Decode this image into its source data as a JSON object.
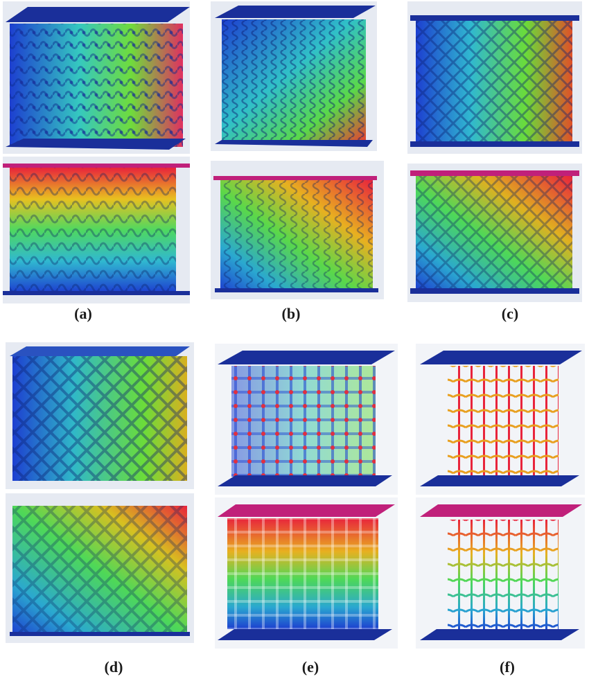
{
  "figure": {
    "panels": [
      {
        "label": "(a)",
        "id": "a",
        "top_mode": "stress",
        "bottom_mode": "displacement",
        "lattice": "bcc-curved"
      },
      {
        "label": "(b)",
        "id": "b",
        "top_mode": "stress",
        "bottom_mode": "displacement",
        "lattice": "woven"
      },
      {
        "label": "(c)",
        "id": "c",
        "top_mode": "stress",
        "bottom_mode": "displacement",
        "lattice": "diamond"
      },
      {
        "label": "(d)",
        "id": "d",
        "top_mode": "stress",
        "bottom_mode": "displacement",
        "lattice": "diamond-thick"
      },
      {
        "label": "(e)",
        "id": "e",
        "top_mode": "stress",
        "bottom_mode": "displacement",
        "lattice": "octet-struts"
      },
      {
        "label": "(f)",
        "id": "f",
        "top_mode": "stress",
        "bottom_mode": "displacement",
        "lattice": "cubic-struts"
      }
    ],
    "colors": {
      "plate": "#1a2f9a",
      "plate_top_displaced": "#c0207a",
      "contour_low": "#1d3fd0",
      "contour_mid": "#2fd37a",
      "contour_high": "#e8243c"
    }
  }
}
